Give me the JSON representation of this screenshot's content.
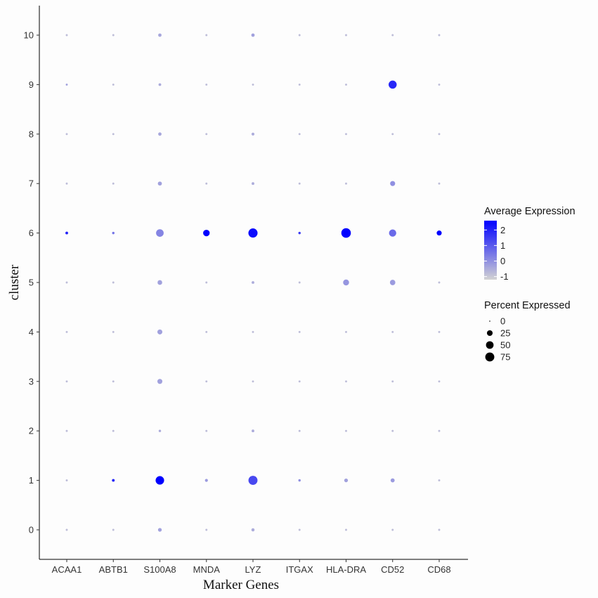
{
  "chart_data": {
    "type": "dotplot",
    "xlabel": "Marker Genes",
    "ylabel": "cluster",
    "genes": [
      "ACAA1",
      "ABTB1",
      "S100A8",
      "MNDA",
      "LYZ",
      "ITGAX",
      "HLA-DRA",
      "CD52",
      "CD68"
    ],
    "clusters": [
      "0",
      "1",
      "2",
      "3",
      "4",
      "5",
      "6",
      "7",
      "8",
      "9",
      "10"
    ],
    "color_legend": {
      "title": "Average Expression",
      "ticks": [
        "2",
        "1",
        "0",
        "-1"
      ],
      "range": [
        -1.2,
        2.6
      ],
      "low_color": "#d3d3d3",
      "high_color": "#0000ff"
    },
    "size_legend": {
      "title": "Percent Expressed",
      "labels": [
        "0",
        "25",
        "50",
        "75"
      ],
      "values": [
        0,
        25,
        50,
        75
      ]
    },
    "points": [
      {
        "gene": "ACAA1",
        "cluster": "0",
        "pct": 1,
        "avg": -0.8
      },
      {
        "gene": "ACAA1",
        "cluster": "1",
        "pct": 1,
        "avg": -0.8
      },
      {
        "gene": "ACAA1",
        "cluster": "2",
        "pct": 1,
        "avg": -0.8
      },
      {
        "gene": "ACAA1",
        "cluster": "3",
        "pct": 1,
        "avg": -0.8
      },
      {
        "gene": "ACAA1",
        "cluster": "4",
        "pct": 1,
        "avg": -0.8
      },
      {
        "gene": "ACAA1",
        "cluster": "5",
        "pct": 1,
        "avg": -0.8
      },
      {
        "gene": "ACAA1",
        "cluster": "6",
        "pct": 3,
        "avg": 2.0
      },
      {
        "gene": "ACAA1",
        "cluster": "7",
        "pct": 1,
        "avg": -0.8
      },
      {
        "gene": "ACAA1",
        "cluster": "8",
        "pct": 1,
        "avg": -0.8
      },
      {
        "gene": "ACAA1",
        "cluster": "9",
        "pct": 1,
        "avg": -0.3
      },
      {
        "gene": "ACAA1",
        "cluster": "10",
        "pct": 1,
        "avg": -0.8
      },
      {
        "gene": "ABTB1",
        "cluster": "0",
        "pct": 1,
        "avg": -0.8
      },
      {
        "gene": "ABTB1",
        "cluster": "1",
        "pct": 3,
        "avg": 2.0
      },
      {
        "gene": "ABTB1",
        "cluster": "2",
        "pct": 1,
        "avg": -0.8
      },
      {
        "gene": "ABTB1",
        "cluster": "3",
        "pct": 1,
        "avg": -0.8
      },
      {
        "gene": "ABTB1",
        "cluster": "4",
        "pct": 1,
        "avg": -0.8
      },
      {
        "gene": "ABTB1",
        "cluster": "5",
        "pct": 1,
        "avg": -0.8
      },
      {
        "gene": "ABTB1",
        "cluster": "6",
        "pct": 2,
        "avg": 0.5
      },
      {
        "gene": "ABTB1",
        "cluster": "7",
        "pct": 1,
        "avg": -0.8
      },
      {
        "gene": "ABTB1",
        "cluster": "8",
        "pct": 1,
        "avg": -0.8
      },
      {
        "gene": "ABTB1",
        "cluster": "9",
        "pct": 1,
        "avg": -0.8
      },
      {
        "gene": "ABTB1",
        "cluster": "10",
        "pct": 1,
        "avg": -0.8
      },
      {
        "gene": "S100A8",
        "cluster": "0",
        "pct": 8,
        "avg": -0.3
      },
      {
        "gene": "S100A8",
        "cluster": "1",
        "pct": 65,
        "avg": 2.6
      },
      {
        "gene": "S100A8",
        "cluster": "2",
        "pct": 2,
        "avg": -0.5
      },
      {
        "gene": "S100A8",
        "cluster": "3",
        "pct": 18,
        "avg": -0.3
      },
      {
        "gene": "S100A8",
        "cluster": "4",
        "pct": 18,
        "avg": -0.3
      },
      {
        "gene": "S100A8",
        "cluster": "5",
        "pct": 15,
        "avg": -0.3
      },
      {
        "gene": "S100A8",
        "cluster": "6",
        "pct": 50,
        "avg": 0.2
      },
      {
        "gene": "S100A8",
        "cluster": "7",
        "pct": 10,
        "avg": -0.3
      },
      {
        "gene": "S100A8",
        "cluster": "8",
        "pct": 6,
        "avg": -0.4
      },
      {
        "gene": "S100A8",
        "cluster": "9",
        "pct": 3,
        "avg": -0.5
      },
      {
        "gene": "S100A8",
        "cluster": "10",
        "pct": 6,
        "avg": -0.4
      },
      {
        "gene": "MNDA",
        "cluster": "0",
        "pct": 1,
        "avg": -0.8
      },
      {
        "gene": "MNDA",
        "cluster": "1",
        "pct": 4,
        "avg": -0.2
      },
      {
        "gene": "MNDA",
        "cluster": "2",
        "pct": 1,
        "avg": -0.8
      },
      {
        "gene": "MNDA",
        "cluster": "3",
        "pct": 1,
        "avg": -0.8
      },
      {
        "gene": "MNDA",
        "cluster": "4",
        "pct": 1,
        "avg": -0.8
      },
      {
        "gene": "MNDA",
        "cluster": "5",
        "pct": 1,
        "avg": -0.8
      },
      {
        "gene": "MNDA",
        "cluster": "6",
        "pct": 35,
        "avg": 2.6
      },
      {
        "gene": "MNDA",
        "cluster": "7",
        "pct": 1,
        "avg": -0.8
      },
      {
        "gene": "MNDA",
        "cluster": "8",
        "pct": 1,
        "avg": -0.8
      },
      {
        "gene": "MNDA",
        "cluster": "9",
        "pct": 1,
        "avg": -0.8
      },
      {
        "gene": "MNDA",
        "cluster": "10",
        "pct": 1,
        "avg": -0.8
      },
      {
        "gene": "LYZ",
        "cluster": "0",
        "pct": 5,
        "avg": -0.5
      },
      {
        "gene": "LYZ",
        "cluster": "1",
        "pct": 75,
        "avg": 1.3
      },
      {
        "gene": "LYZ",
        "cluster": "2",
        "pct": 3,
        "avg": -0.5
      },
      {
        "gene": "LYZ",
        "cluster": "3",
        "pct": 1,
        "avg": -0.8
      },
      {
        "gene": "LYZ",
        "cluster": "4",
        "pct": 1,
        "avg": -0.8
      },
      {
        "gene": "LYZ",
        "cluster": "5",
        "pct": 3,
        "avg": -0.5
      },
      {
        "gene": "LYZ",
        "cluster": "6",
        "pct": 78,
        "avg": 2.4
      },
      {
        "gene": "LYZ",
        "cluster": "7",
        "pct": 3,
        "avg": -0.5
      },
      {
        "gene": "LYZ",
        "cluster": "8",
        "pct": 4,
        "avg": -0.5
      },
      {
        "gene": "LYZ",
        "cluster": "9",
        "pct": 1,
        "avg": -0.8
      },
      {
        "gene": "LYZ",
        "cluster": "10",
        "pct": 6,
        "avg": -0.3
      },
      {
        "gene": "ITGAX",
        "cluster": "0",
        "pct": 1,
        "avg": -0.8
      },
      {
        "gene": "ITGAX",
        "cluster": "1",
        "pct": 2,
        "avg": 0.0
      },
      {
        "gene": "ITGAX",
        "cluster": "2",
        "pct": 1,
        "avg": -0.8
      },
      {
        "gene": "ITGAX",
        "cluster": "3",
        "pct": 1,
        "avg": -0.8
      },
      {
        "gene": "ITGAX",
        "cluster": "4",
        "pct": 1,
        "avg": -0.8
      },
      {
        "gene": "ITGAX",
        "cluster": "5",
        "pct": 1,
        "avg": -0.8
      },
      {
        "gene": "ITGAX",
        "cluster": "6",
        "pct": 2,
        "avg": 1.5
      },
      {
        "gene": "ITGAX",
        "cluster": "7",
        "pct": 1,
        "avg": -0.8
      },
      {
        "gene": "ITGAX",
        "cluster": "8",
        "pct": 1,
        "avg": -0.8
      },
      {
        "gene": "ITGAX",
        "cluster": "9",
        "pct": 1,
        "avg": -0.8
      },
      {
        "gene": "ITGAX",
        "cluster": "10",
        "pct": 1,
        "avg": -0.8
      },
      {
        "gene": "HLA-DRA",
        "cluster": "0",
        "pct": 1,
        "avg": -0.8
      },
      {
        "gene": "HLA-DRA",
        "cluster": "1",
        "pct": 8,
        "avg": -0.3
      },
      {
        "gene": "HLA-DRA",
        "cluster": "2",
        "pct": 1,
        "avg": -0.8
      },
      {
        "gene": "HLA-DRA",
        "cluster": "3",
        "pct": 1,
        "avg": -0.8
      },
      {
        "gene": "HLA-DRA",
        "cluster": "4",
        "pct": 1,
        "avg": -0.8
      },
      {
        "gene": "HLA-DRA",
        "cluster": "5",
        "pct": 28,
        "avg": -0.1
      },
      {
        "gene": "HLA-DRA",
        "cluster": "6",
        "pct": 85,
        "avg": 2.6
      },
      {
        "gene": "HLA-DRA",
        "cluster": "7",
        "pct": 1,
        "avg": -0.8
      },
      {
        "gene": "HLA-DRA",
        "cluster": "8",
        "pct": 1,
        "avg": -0.8
      },
      {
        "gene": "HLA-DRA",
        "cluster": "9",
        "pct": 1,
        "avg": -0.8
      },
      {
        "gene": "HLA-DRA",
        "cluster": "10",
        "pct": 1,
        "avg": -0.8
      },
      {
        "gene": "CD52",
        "cluster": "0",
        "pct": 1,
        "avg": -0.8
      },
      {
        "gene": "CD52",
        "cluster": "1",
        "pct": 10,
        "avg": -0.2
      },
      {
        "gene": "CD52",
        "cluster": "2",
        "pct": 1,
        "avg": -0.8
      },
      {
        "gene": "CD52",
        "cluster": "3",
        "pct": 1,
        "avg": -0.8
      },
      {
        "gene": "CD52",
        "cluster": "4",
        "pct": 1,
        "avg": -0.8
      },
      {
        "gene": "CD52",
        "cluster": "5",
        "pct": 22,
        "avg": -0.2
      },
      {
        "gene": "CD52",
        "cluster": "6",
        "pct": 45,
        "avg": 0.7
      },
      {
        "gene": "CD52",
        "cluster": "7",
        "pct": 18,
        "avg": 0.0
      },
      {
        "gene": "CD52",
        "cluster": "8",
        "pct": 1,
        "avg": -0.8
      },
      {
        "gene": "CD52",
        "cluster": "9",
        "pct": 58,
        "avg": 1.9
      },
      {
        "gene": "CD52",
        "cluster": "10",
        "pct": 1,
        "avg": -0.8
      },
      {
        "gene": "CD68",
        "cluster": "0",
        "pct": 1,
        "avg": -0.8
      },
      {
        "gene": "CD68",
        "cluster": "1",
        "pct": 1,
        "avg": -0.8
      },
      {
        "gene": "CD68",
        "cluster": "2",
        "pct": 1,
        "avg": -0.8
      },
      {
        "gene": "CD68",
        "cluster": "3",
        "pct": 1,
        "avg": -0.8
      },
      {
        "gene": "CD68",
        "cluster": "4",
        "pct": 1,
        "avg": -0.8
      },
      {
        "gene": "CD68",
        "cluster": "5",
        "pct": 1,
        "avg": -0.8
      },
      {
        "gene": "CD68",
        "cluster": "6",
        "pct": 18,
        "avg": 2.6
      },
      {
        "gene": "CD68",
        "cluster": "7",
        "pct": 1,
        "avg": -0.8
      },
      {
        "gene": "CD68",
        "cluster": "8",
        "pct": 1,
        "avg": -0.8
      },
      {
        "gene": "CD68",
        "cluster": "9",
        "pct": 1,
        "avg": -0.8
      },
      {
        "gene": "CD68",
        "cluster": "10",
        "pct": 1,
        "avg": -0.8
      }
    ]
  }
}
